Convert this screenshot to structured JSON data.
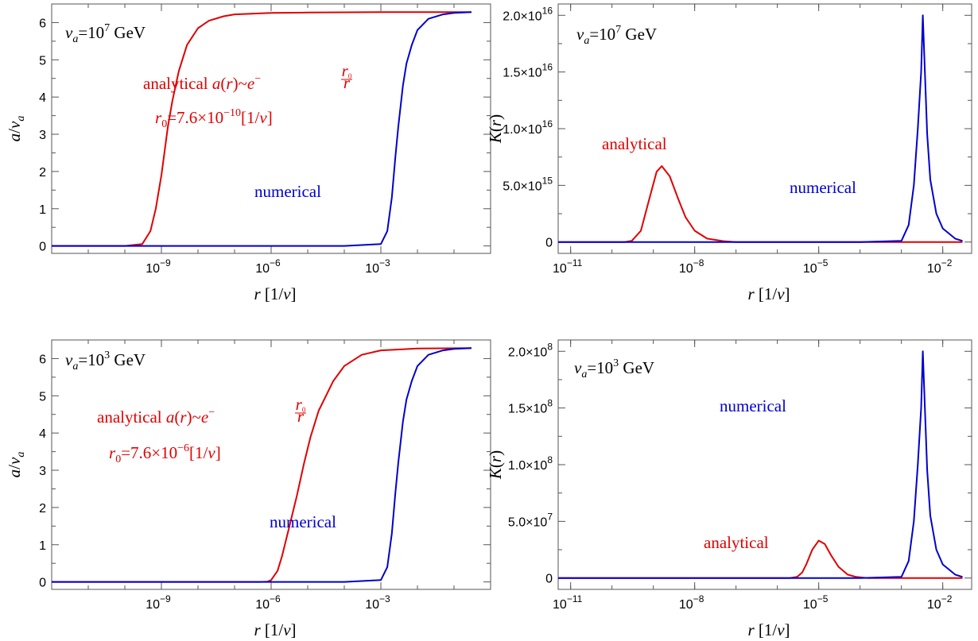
{
  "chart_data": [
    {
      "type": "line",
      "x_scale": "log",
      "xlim": [
        1e-12,
        1
      ],
      "ylim": [
        -0.2,
        6.5
      ],
      "x_ticks": [
        1e-09,
        1e-06,
        0.001
      ],
      "x_tick_labels": [
        "10",
        "10",
        "10"
      ],
      "x_tick_exps": [
        "−9",
        "−6",
        "−3"
      ],
      "y_ticks": [
        0,
        1,
        2,
        3,
        4,
        5,
        6
      ],
      "y_tick_labels": [
        "0",
        "1",
        "2",
        "3",
        "4",
        "5",
        "6"
      ],
      "xlabel": "r [1/v]",
      "ylabel": "a/v",
      "ylabel_sub": "a",
      "grid": false,
      "legend": "none",
      "annotation_va": {
        "pre": "v",
        "sub": "a",
        "mid": "=10",
        "exp": "7",
        "post": " GeV"
      },
      "annotation_analytical": {
        "text": "analytical  a(r) ~ e^(−r0/r)",
        "color": "#e00000"
      },
      "annotation_r0": {
        "text": "r0=7.6×10^(−10) [1/v]",
        "color": "#e00000"
      },
      "annotation_numerical": {
        "text": "numerical",
        "color": "#0000d0"
      },
      "series": [
        {
          "name": "analytical",
          "color": "#e00000",
          "x": [
            1e-12,
            1e-11,
            1e-10,
            3e-10,
            5e-10,
            7e-10,
            1e-09,
            1.5e-09,
            2e-09,
            3e-09,
            5e-09,
            1e-08,
            2e-08,
            5e-08,
            1e-07,
            1e-06,
            1e-05,
            0.001,
            0.3
          ],
          "y": [
            0,
            0,
            0,
            0.05,
            0.4,
            1.0,
            1.9,
            3.2,
            3.9,
            4.7,
            5.4,
            5.85,
            6.05,
            6.17,
            6.22,
            6.26,
            6.27,
            6.28,
            6.28
          ]
        },
        {
          "name": "numerical",
          "color": "#0000d0",
          "x": [
            1e-12,
            0.0001,
            0.001,
            0.0015,
            0.002,
            0.0025,
            0.003,
            0.004,
            0.005,
            0.007,
            0.01,
            0.02,
            0.05,
            0.1,
            0.3
          ],
          "y": [
            0,
            0,
            0.05,
            0.4,
            1.3,
            2.4,
            3.2,
            4.3,
            4.9,
            5.4,
            5.8,
            6.1,
            6.22,
            6.26,
            6.28
          ]
        }
      ]
    },
    {
      "type": "line",
      "x_scale": "log",
      "xlim": [
        5e-12,
        0.05
      ],
      "ylim": [
        -1000000000000000.0,
        2.1e+16
      ],
      "x_ticks": [
        1e-11,
        1e-08,
        1e-05,
        0.01
      ],
      "x_tick_labels": [
        "10",
        "10",
        "10",
        "10"
      ],
      "x_tick_exps": [
        "−11",
        "−8",
        "−5",
        "−2"
      ],
      "y_ticks": [
        0,
        5000000000000000.0,
        1e+16,
        1.5e+16,
        2e+16
      ],
      "y_tick_labels": [
        "0",
        "5.0×10",
        "1.0×10",
        "1.5×10",
        "2.0×10"
      ],
      "y_tick_exps": [
        "",
        "15",
        "16",
        "16",
        "16"
      ],
      "xlabel": "r [1/v]",
      "ylabel": "K(r)",
      "grid": false,
      "legend": "none",
      "annotation_va": {
        "pre": "v",
        "sub": "a",
        "mid": "=10",
        "exp": "7",
        "post": " GeV"
      },
      "annotation_analytical": {
        "text": "analytical",
        "color": "#e00000"
      },
      "annotation_numerical": {
        "text": "numerical",
        "color": "#0000d0"
      },
      "series": [
        {
          "name": "analytical",
          "color": "#e00000",
          "x": [
            5e-12,
            2e-10,
            3e-10,
            5e-10,
            8e-10,
            1.2e-09,
            1.6e-09,
            2.5e-09,
            4e-09,
            6e-09,
            1e-08,
            2e-08,
            5e-08,
            1e-07,
            1e-05,
            0.001,
            0.03
          ],
          "y": [
            0,
            0,
            100000000000000.0,
            1000000000000000.0,
            3800000000000000.0,
            6200000000000000.0,
            6700000000000000.0,
            5800000000000000.0,
            3800000000000000.0,
            2200000000000000.0,
            1000000000000000.0,
            300000000000000.0,
            80000000000000.0,
            0,
            0,
            0,
            0
          ]
        },
        {
          "name": "numerical",
          "color": "#0000d0",
          "x": [
            5e-12,
            0.0001,
            0.001,
            0.0015,
            0.002,
            0.0025,
            0.003,
            0.0033,
            0.0037,
            0.0042,
            0.005,
            0.007,
            0.01,
            0.02,
            0.03
          ],
          "y": [
            0,
            0,
            100000000000000.0,
            1500000000000000.0,
            5000000000000000.0,
            1e+16,
            1.5e+16,
            2e+16,
            1.5e+16,
            9500000000000000.0,
            5500000000000000.0,
            2500000000000000.0,
            1200000000000000.0,
            300000000000000.0,
            100000000000000.0
          ]
        }
      ]
    },
    {
      "type": "line",
      "x_scale": "log",
      "xlim": [
        1e-12,
        1
      ],
      "ylim": [
        -0.2,
        6.5
      ],
      "x_ticks": [
        1e-09,
        1e-06,
        0.001
      ],
      "x_tick_labels": [
        "10",
        "10",
        "10"
      ],
      "x_tick_exps": [
        "−9",
        "−6",
        "−3"
      ],
      "y_ticks": [
        0,
        1,
        2,
        3,
        4,
        5,
        6
      ],
      "y_tick_labels": [
        "0",
        "1",
        "2",
        "3",
        "4",
        "5",
        "6"
      ],
      "xlabel": "r [1/v]",
      "ylabel": "a/v",
      "ylabel_sub": "a",
      "grid": false,
      "legend": "none",
      "annotation_va": {
        "pre": "v",
        "sub": "a",
        "mid": "=10",
        "exp": "3",
        "post": " GeV"
      },
      "annotation_analytical": {
        "text": "analytical  a(r) ~ e^(−r0/r)",
        "color": "#e00000"
      },
      "annotation_r0": {
        "text": "r0=7.6×10^(−6) [1/v]",
        "color": "#e00000"
      },
      "annotation_numerical": {
        "text": "numerical",
        "color": "#0000d0"
      },
      "series": [
        {
          "name": "analytical",
          "color": "#e00000",
          "x": [
            1e-12,
            1e-07,
            5e-07,
            8e-07,
            1e-06,
            1.5e-06,
            2e-06,
            3e-06,
            5e-06,
            8e-06,
            1.2e-05,
            2e-05,
            5e-05,
            0.0001,
            0.0003,
            0.001,
            0.01,
            0.3
          ],
          "y": [
            0,
            0,
            0,
            0.01,
            0.05,
            0.3,
            0.7,
            1.4,
            2.3,
            3.2,
            3.9,
            4.6,
            5.4,
            5.8,
            6.1,
            6.22,
            6.27,
            6.28
          ]
        },
        {
          "name": "numerical",
          "color": "#0000d0",
          "x": [
            1e-12,
            0.0001,
            0.001,
            0.0015,
            0.002,
            0.0025,
            0.003,
            0.004,
            0.005,
            0.007,
            0.01,
            0.02,
            0.05,
            0.1,
            0.3
          ],
          "y": [
            0,
            0,
            0.05,
            0.4,
            1.3,
            2.4,
            3.2,
            4.3,
            4.9,
            5.4,
            5.8,
            6.1,
            6.22,
            6.26,
            6.28
          ]
        }
      ]
    },
    {
      "type": "line",
      "x_scale": "log",
      "xlim": [
        5e-12,
        0.05
      ],
      "ylim": [
        -10000000.0,
        210000000.0
      ],
      "x_ticks": [
        1e-11,
        1e-08,
        1e-05,
        0.01
      ],
      "x_tick_labels": [
        "10",
        "10",
        "10",
        "10"
      ],
      "x_tick_exps": [
        "−11",
        "−8",
        "−5",
        "−2"
      ],
      "y_ticks": [
        0,
        50000000.0,
        100000000.0,
        150000000.0,
        200000000.0
      ],
      "y_tick_labels": [
        "0",
        "5.0×10",
        "1.0×10",
        "1.5×10",
        "2.0×10"
      ],
      "y_tick_exps": [
        "",
        "7",
        "8",
        "8",
        "8"
      ],
      "xlabel": "r [1/v]",
      "ylabel": "K(r)",
      "grid": false,
      "legend": "none",
      "annotation_va": {
        "pre": "v",
        "sub": "a",
        "mid": "=10",
        "exp": "3",
        "post": " GeV"
      },
      "annotation_analytical": {
        "text": "analytical",
        "color": "#e00000"
      },
      "annotation_numerical": {
        "text": "numerical",
        "color": "#0000d0"
      },
      "series": [
        {
          "name": "analytical",
          "color": "#e00000",
          "x": [
            5e-12,
            2e-06,
            3e-06,
            4e-06,
            5e-06,
            7e-06,
            1e-05,
            1.4e-05,
            2e-05,
            3e-05,
            5e-05,
            8e-05,
            0.00015,
            0.0003,
            0.001,
            0.03
          ],
          "y": [
            0,
            0,
            1000000.0,
            5000000.0,
            12000000.0,
            25000000.0,
            33000000.0,
            30000000.0,
            20000000.0,
            10000000.0,
            3000000.0,
            1000000.0,
            0,
            0,
            0,
            0
          ]
        },
        {
          "name": "numerical",
          "color": "#0000d0",
          "x": [
            5e-12,
            0.0001,
            0.001,
            0.0015,
            0.002,
            0.0025,
            0.003,
            0.0033,
            0.0037,
            0.0042,
            0.005,
            0.007,
            0.01,
            0.02,
            0.03
          ],
          "y": [
            0,
            0,
            1000000.0,
            15000000.0,
            50000000.0,
            100000000.0,
            150000000.0,
            200000000.0,
            150000000.0,
            95000000.0,
            55000000.0,
            25000000.0,
            12000000.0,
            3000000.0,
            1000000.0
          ]
        }
      ]
    }
  ]
}
